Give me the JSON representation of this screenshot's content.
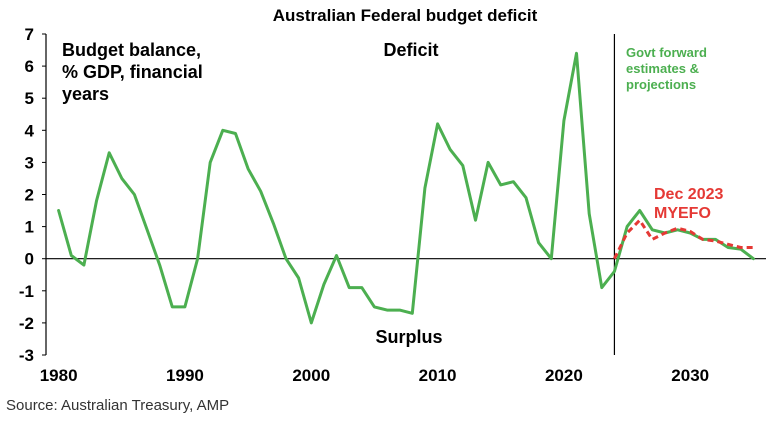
{
  "chart_data": {
    "type": "line",
    "title": "Australian Federal budget deficit",
    "ylabel_lines": [
      "Budget balance,",
      "% GDP, financial",
      "years"
    ],
    "xlim": [
      1979,
      2036
    ],
    "ylim": [
      -3,
      7
    ],
    "xticks": [
      "1980",
      "1990",
      "2000",
      "2010",
      "2020",
      "2030"
    ],
    "yticks": [
      "-3",
      "-2",
      "-1",
      "0",
      "1",
      "2",
      "3",
      "4",
      "5",
      "6",
      "7"
    ],
    "annotations": {
      "deficit": "Deficit",
      "surplus": "Surplus",
      "forward_lines": [
        "Govt forward",
        "estimates &",
        "projections"
      ],
      "myefo_lines": [
        "Dec 2023",
        "MYEFO"
      ]
    },
    "forecast_divider_x": 2024,
    "colors": {
      "series": "#4caf50",
      "myefo": "#e53935",
      "axis": "#000000"
    },
    "series": [
      {
        "name": "Budget balance",
        "style": "solid",
        "x": [
          1980,
          1981,
          1982,
          1983,
          1984,
          1985,
          1986,
          1987,
          1988,
          1989,
          1990,
          1991,
          1992,
          1993,
          1994,
          1995,
          1996,
          1997,
          1998,
          1999,
          2000,
          2001,
          2002,
          2003,
          2004,
          2005,
          2006,
          2007,
          2008,
          2009,
          2010,
          2011,
          2012,
          2013,
          2014,
          2015,
          2016,
          2017,
          2018,
          2019,
          2020,
          2021,
          2022,
          2023,
          2024,
          2025,
          2026,
          2027,
          2028,
          2029,
          2030,
          2031,
          2032,
          2033,
          2034,
          2035
        ],
        "values": [
          1.5,
          0.1,
          -0.2,
          1.8,
          3.3,
          2.5,
          2.0,
          0.9,
          -0.2,
          -1.5,
          -1.5,
          0.0,
          3.0,
          4.0,
          3.9,
          2.8,
          2.1,
          1.1,
          0.0,
          -0.6,
          -2.0,
          -0.8,
          0.1,
          -0.9,
          -0.9,
          -1.5,
          -1.6,
          -1.6,
          -1.7,
          2.2,
          4.2,
          3.4,
          2.9,
          1.2,
          3.0,
          2.3,
          2.4,
          1.9,
          0.5,
          0.0,
          4.3,
          6.4,
          1.4,
          -0.9,
          -0.4,
          1.0,
          1.5,
          0.9,
          0.8,
          0.9,
          0.8,
          0.6,
          0.6,
          0.35,
          0.3,
          0.0
        ]
      },
      {
        "name": "Dec 2023 MYEFO",
        "style": "dashed",
        "x": [
          2024,
          2025,
          2026,
          2027,
          2028,
          2029,
          2030,
          2031,
          2032,
          2033,
          2034,
          2035
        ],
        "values": [
          0.0,
          0.8,
          1.2,
          0.6,
          0.8,
          0.95,
          0.85,
          0.6,
          0.55,
          0.45,
          0.35,
          0.35
        ]
      }
    ]
  },
  "source": "Source: Australian Treasury, AMP"
}
